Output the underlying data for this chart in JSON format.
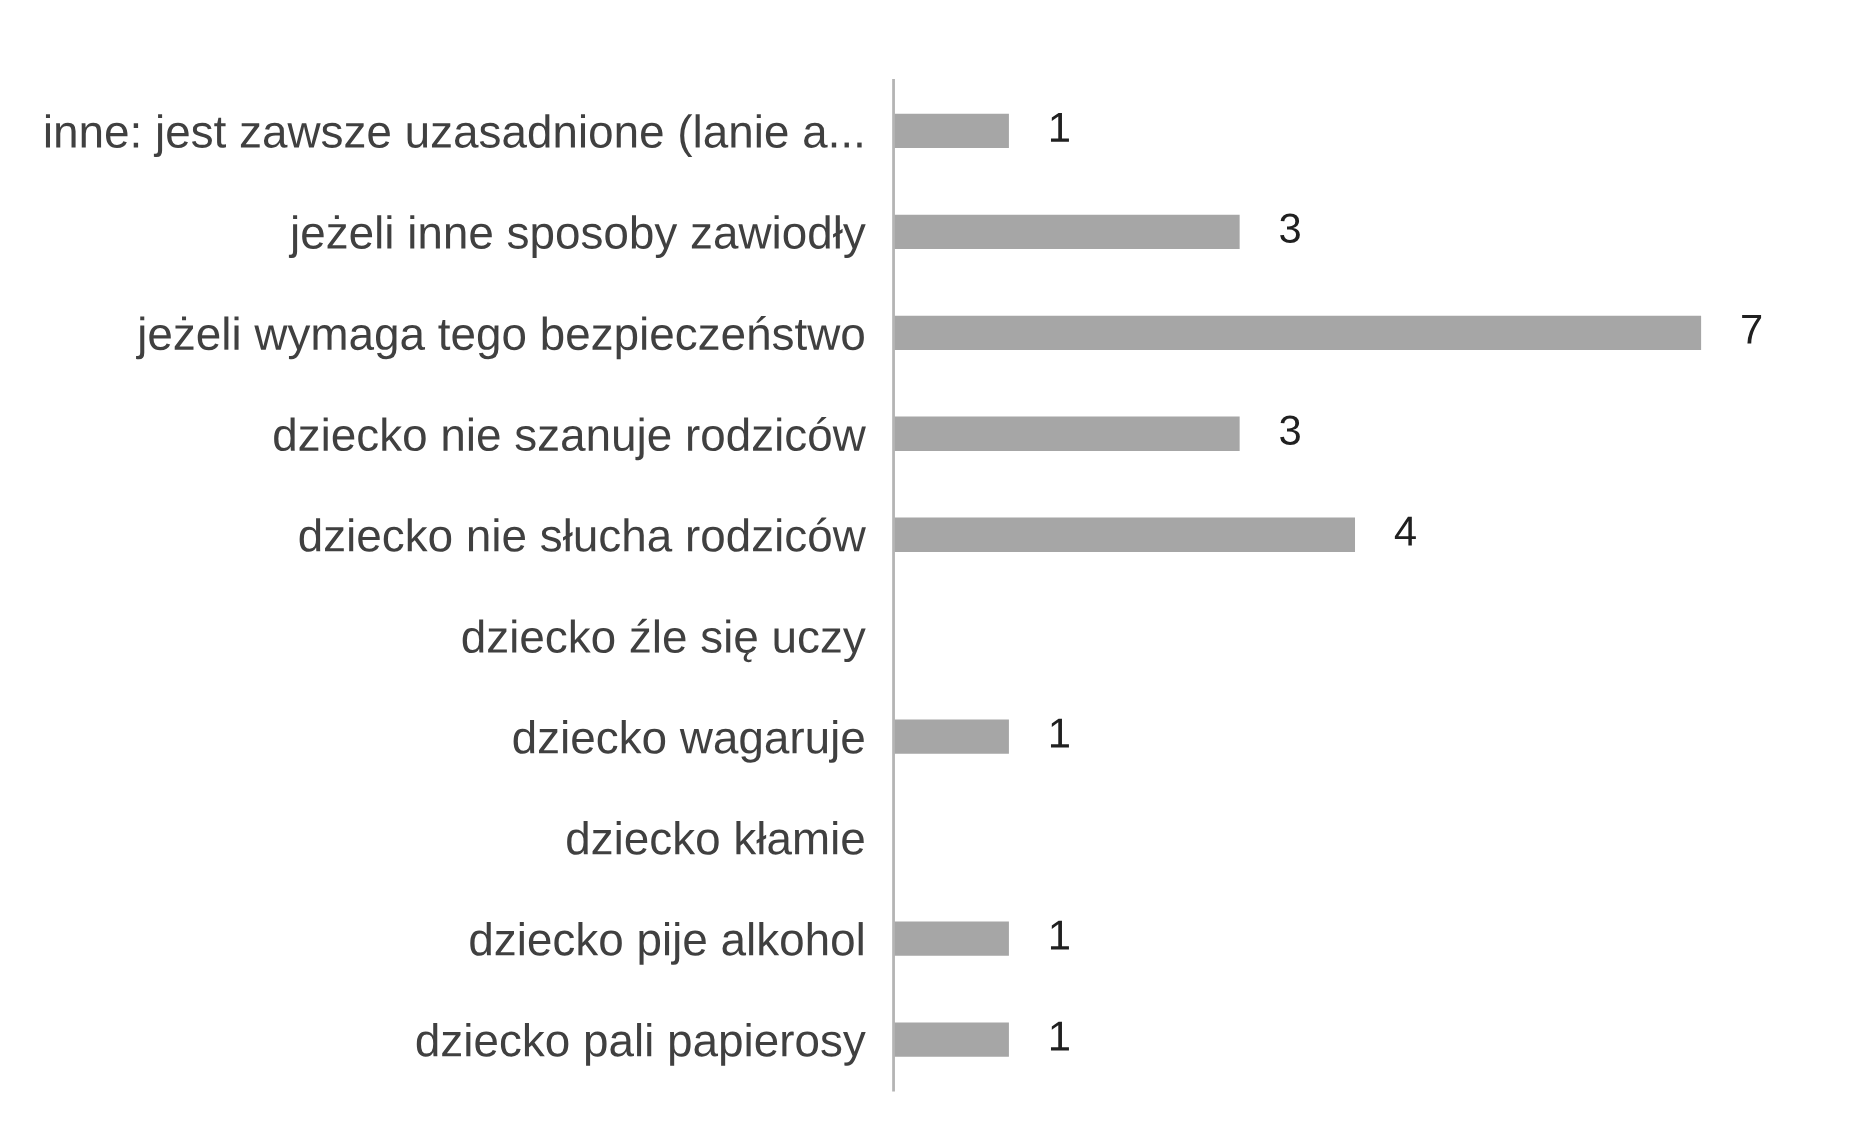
{
  "chart_data": {
    "type": "bar",
    "orientation": "horizontal",
    "categories": [
      "inne: jest zawsze uzasadnione (lanie a...",
      "jeżeli inne sposoby zawiodły",
      "jeżeli wymaga tego bezpieczeństwo",
      "dziecko nie szanuje rodziców",
      "dziecko nie słucha rodziców",
      "dziecko źle się uczy",
      "dziecko wagaruje",
      "dziecko kłamie",
      "dziecko pije alkohol",
      "dziecko pali papierosy"
    ],
    "values": [
      1,
      3,
      7,
      3,
      4,
      null,
      1,
      null,
      1,
      1
    ],
    "value_labels": [
      "1",
      "3",
      "7",
      "3",
      "4",
      null,
      "1",
      null,
      "1",
      "1"
    ],
    "color": "#a6a6a6",
    "tick_labels": "y",
    "grid": false,
    "legend": false
  }
}
